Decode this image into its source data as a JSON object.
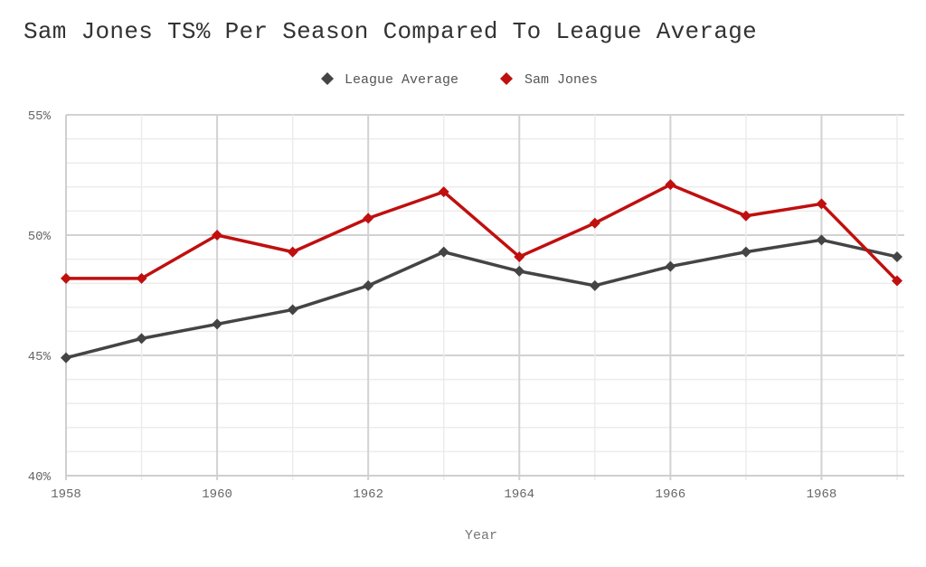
{
  "chart_data": {
    "type": "line",
    "title": "Sam Jones TS% Per Season Compared To League Average",
    "xlabel": "Year",
    "ylabel": "",
    "x": [
      1958,
      1959,
      1960,
      1961,
      1962,
      1963,
      1964,
      1965,
      1966,
      1967,
      1968,
      1969
    ],
    "xlim": [
      1958,
      1969
    ],
    "ylim": [
      40,
      55
    ],
    "x_ticks": [
      "1958",
      "1960",
      "1962",
      "1964",
      "1966",
      "1968"
    ],
    "y_ticks": [
      "40%",
      "45%",
      "50%",
      "55%"
    ],
    "grid": true,
    "legend_position": "top-center",
    "series": [
      {
        "name": "League Average",
        "color": "#444444",
        "marker": "diamond",
        "values": [
          44.9,
          45.7,
          46.3,
          46.9,
          47.9,
          49.3,
          48.5,
          47.9,
          48.7,
          49.3,
          49.8,
          49.1
        ]
      },
      {
        "name": "Sam Jones",
        "color": "#c00f0f",
        "marker": "diamond",
        "values": [
          48.2,
          48.2,
          50.0,
          49.3,
          50.7,
          51.8,
          49.1,
          50.5,
          52.1,
          50.8,
          51.3,
          48.1
        ]
      }
    ]
  }
}
